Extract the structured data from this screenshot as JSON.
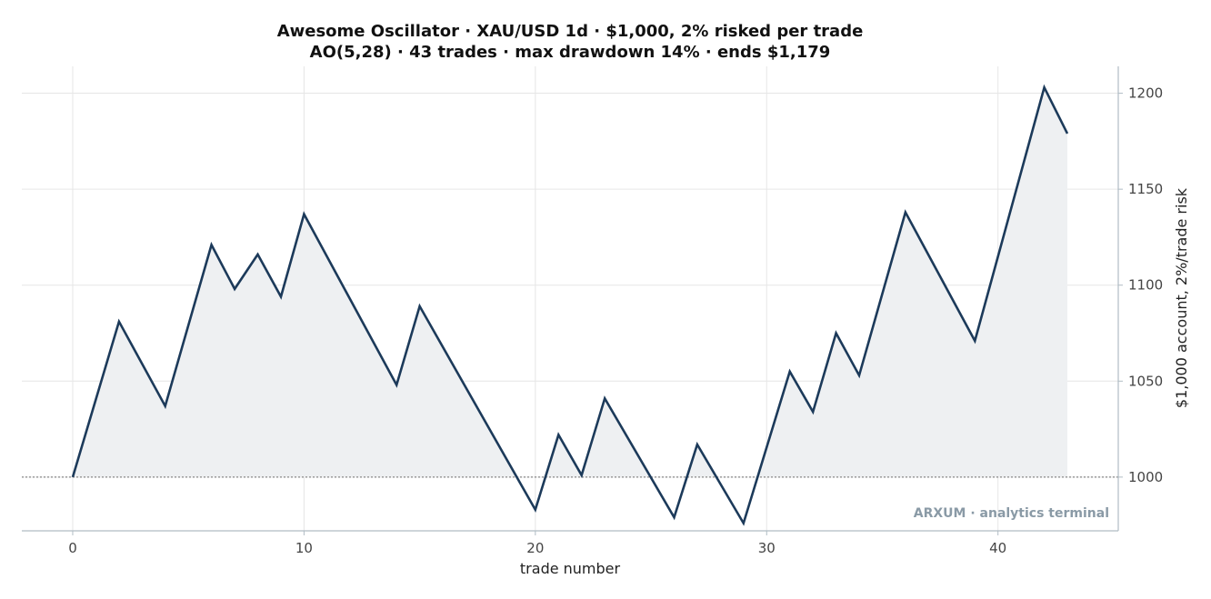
{
  "chart_data": {
    "type": "line",
    "title": "Awesome Oscillator · XAU/USD 1d · $1,000, 2% risked per trade",
    "subtitle": "AO(5,28) · 43 trades · max drawdown 14% · ends $1,179",
    "xlabel": "trade number",
    "ylabel": "$1,000 account, 2%/trade risk",
    "xlim": [
      -2.2,
      45.2
    ],
    "ylim": [
      972,
      1214
    ],
    "x_ticks": [
      0,
      10,
      20,
      30,
      40
    ],
    "y_ticks": [
      1000,
      1050,
      1100,
      1150,
      1200
    ],
    "baseline": 1000,
    "y_axis_side": "right",
    "grid": true,
    "fill_above_baseline": true,
    "colors": {
      "line": "#1c3a5a",
      "fill": "#eef0f2",
      "baseline": "#888888"
    },
    "series": [
      {
        "x": [
          0,
          2,
          4,
          6,
          7,
          8,
          9,
          10,
          14,
          15,
          20,
          21,
          22,
          23,
          26,
          27,
          29,
          31,
          32,
          33,
          34,
          36,
          39,
          42,
          43
        ],
        "values": [
          1000,
          1081,
          1037,
          1121,
          1098,
          1116,
          1094,
          1137,
          1048,
          1089,
          983,
          1022,
          1001,
          1041,
          979,
          1017,
          976,
          1055,
          1034,
          1075,
          1053,
          1138,
          1071,
          1203,
          1179
        ]
      }
    ]
  },
  "watermark": "ARXUM · analytics terminal"
}
